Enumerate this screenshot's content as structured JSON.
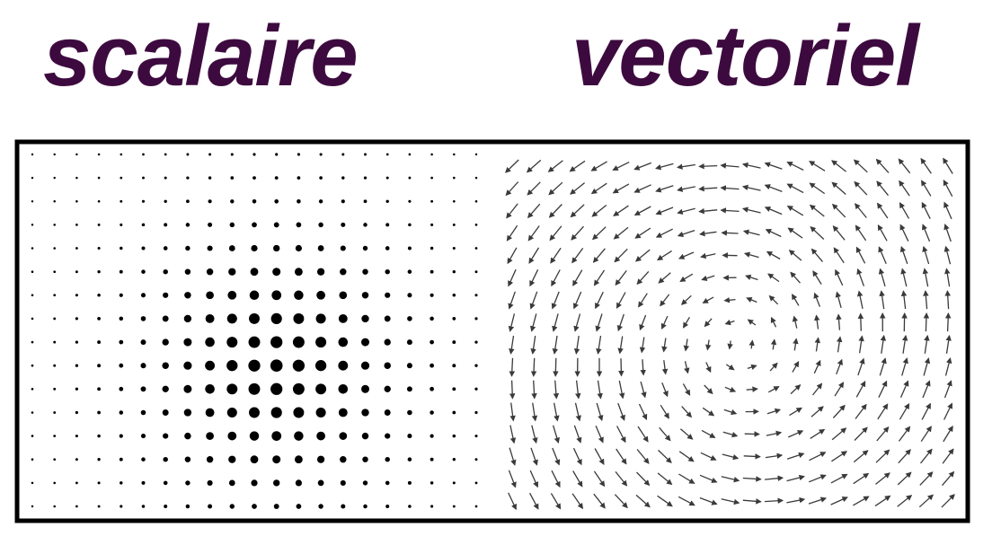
{
  "headings": {
    "scalar": "scalaire",
    "vector": "vectoriel"
  },
  "colors": {
    "heading": "#3d0a3f",
    "ink": "#000000",
    "arrow": "#3a3a3a",
    "background": "#ffffff"
  },
  "scalar_field": {
    "description_kind": "dot-size field",
    "grid": {
      "cols": 21,
      "rows": 16
    },
    "peak_cell": {
      "col": 11,
      "row": 9
    }
  },
  "vector_field": {
    "grid": {
      "cols": 21,
      "rows": 16
    },
    "vortex_center_cell": {
      "col": 10.5,
      "row": 8
    }
  }
}
